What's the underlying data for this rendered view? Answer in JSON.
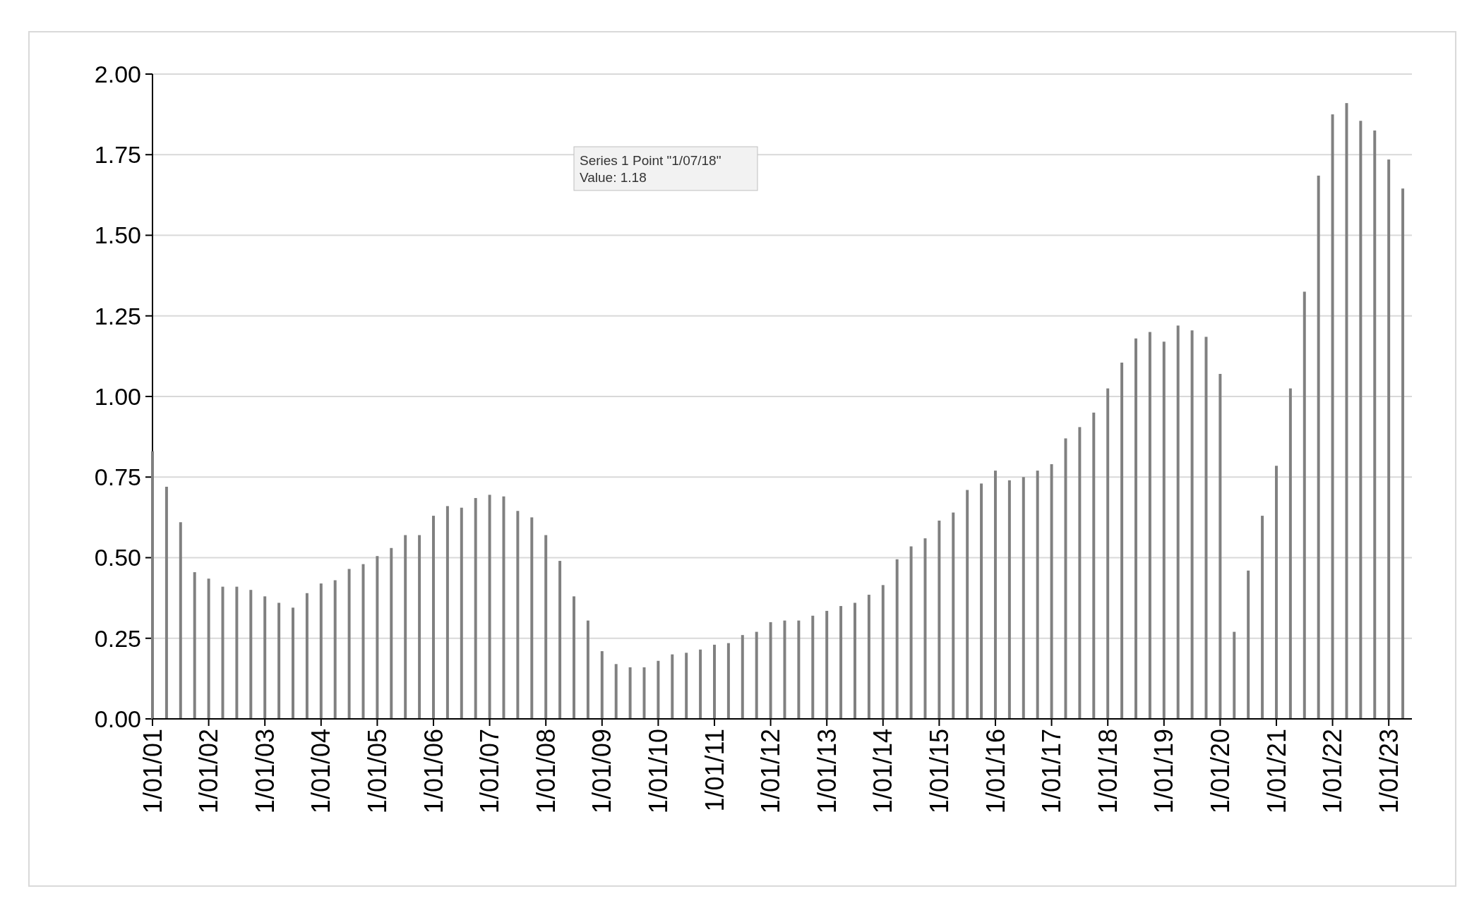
{
  "chart_data": {
    "type": "bar",
    "categories": [
      "1/01/01",
      null,
      null,
      null,
      "1/01/02",
      null,
      null,
      null,
      "1/01/03",
      null,
      null,
      null,
      "1/01/04",
      null,
      null,
      null,
      "1/01/05",
      null,
      null,
      null,
      "1/01/06",
      null,
      null,
      null,
      "1/01/07",
      null,
      null,
      null,
      "1/01/08",
      null,
      null,
      null,
      "1/01/09",
      null,
      null,
      null,
      "1/01/10",
      null,
      null,
      null,
      "1/01/11",
      null,
      null,
      null,
      "1/01/12",
      null,
      null,
      null,
      "1/01/13",
      null,
      null,
      null,
      "1/01/14",
      null,
      null,
      null,
      "1/01/15",
      null,
      null,
      null,
      "1/01/16",
      null,
      null,
      null,
      "1/01/17",
      null,
      null,
      null,
      "1/01/18",
      null,
      null,
      null,
      "1/01/19",
      null,
      null,
      null,
      "1/01/20",
      null,
      null,
      null,
      "1/01/21",
      null,
      null,
      null,
      "1/01/22",
      null,
      null,
      null,
      "1/01/23",
      null
    ],
    "values": [
      0.83,
      0.72,
      0.61,
      0.455,
      0.435,
      0.41,
      0.41,
      0.4,
      0.38,
      0.36,
      0.345,
      0.39,
      0.42,
      0.43,
      0.465,
      0.48,
      0.505,
      0.53,
      0.57,
      0.57,
      0.63,
      0.66,
      0.655,
      0.685,
      0.695,
      0.69,
      0.645,
      0.625,
      0.57,
      0.49,
      0.38,
      0.305,
      0.21,
      0.17,
      0.16,
      0.16,
      0.18,
      0.2,
      0.205,
      0.215,
      0.23,
      0.235,
      0.26,
      0.27,
      0.3,
      0.305,
      0.305,
      0.32,
      0.335,
      0.35,
      0.36,
      0.385,
      0.415,
      0.495,
      0.535,
      0.56,
      0.615,
      0.64,
      0.71,
      0.73,
      0.77,
      0.74,
      0.75,
      0.77,
      0.79,
      0.87,
      0.905,
      0.95,
      1.025,
      1.105,
      1.18,
      1.2,
      1.17,
      1.22,
      1.205,
      1.185,
      1.07,
      0.27,
      0.46,
      0.63,
      0.785,
      1.025,
      1.325,
      1.685,
      1.875,
      1.91,
      1.855,
      1.825,
      1.735,
      1.645
    ],
    "color": "#808080",
    "ylim": [
      0,
      2
    ],
    "yticks": [
      {
        "value": 0,
        "label": "0.00"
      },
      {
        "value": 0.25,
        "label": "0.25"
      },
      {
        "value": 0.5,
        "label": "0.50"
      },
      {
        "value": 0.75,
        "label": "0.75"
      },
      {
        "value": 1,
        "label": "1.00"
      },
      {
        "value": 1.25,
        "label": "1.25"
      },
      {
        "value": 1.5,
        "label": "1.50"
      },
      {
        "value": 1.75,
        "label": "1.75"
      },
      {
        "value": 2,
        "label": "2.00"
      }
    ],
    "grid": "y",
    "annotations": [
      "Series 1 Point \"1/07/18\"\nValue: 1.18"
    ]
  }
}
